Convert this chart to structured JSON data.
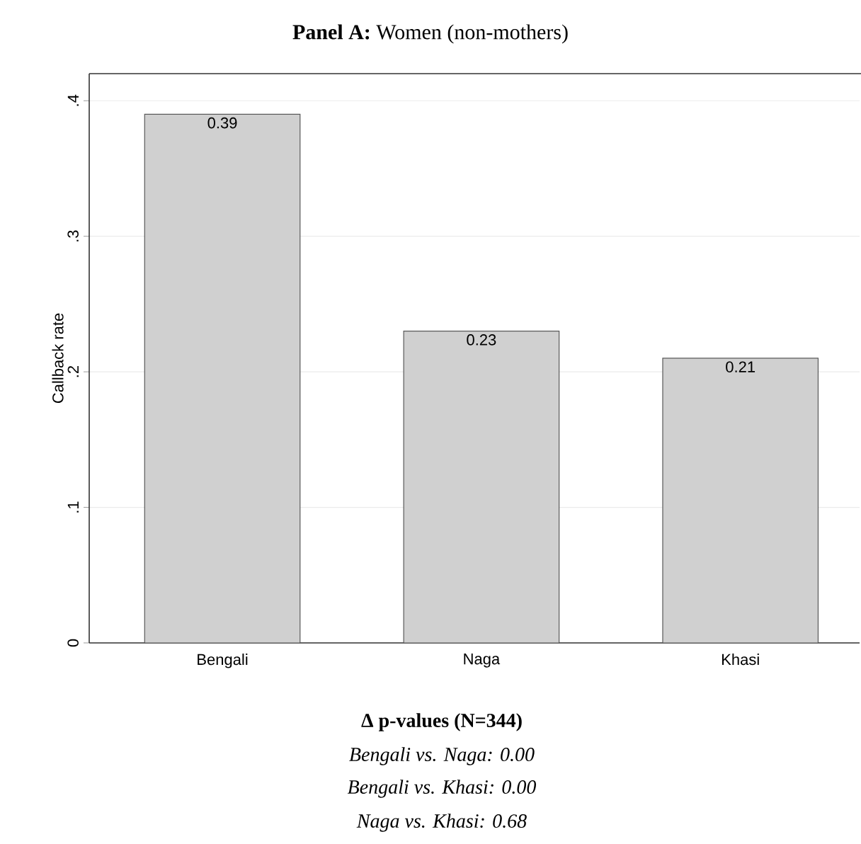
{
  "chart_data": {
    "type": "bar",
    "title": "**Panel A:** Women (non-mothers)",
    "ylabel": "Callback rate",
    "categories": [
      "Bengali",
      "Naga",
      "Khasi"
    ],
    "values": [
      0.39,
      0.23,
      0.21
    ],
    "color": "#d0d0d0",
    "ylim": [
      0,
      0.42
    ],
    "yticks": [
      0,
      {
        "value": 0.1,
        "label": ".1"
      },
      {
        "value": 0.2,
        "label": ".2"
      },
      {
        "value": 0.3,
        "label": ".3"
      },
      {
        "value": 0.4,
        "label": ".4"
      }
    ],
    "grid": "y",
    "data_labels": true,
    "annotations": [
      "Δ p-values (N=344)",
      "Bengali vs. Naga: 0.00",
      "Bengali vs. Khasi: 0.00",
      "Naga vs. Khasi: 0.68"
    ]
  }
}
